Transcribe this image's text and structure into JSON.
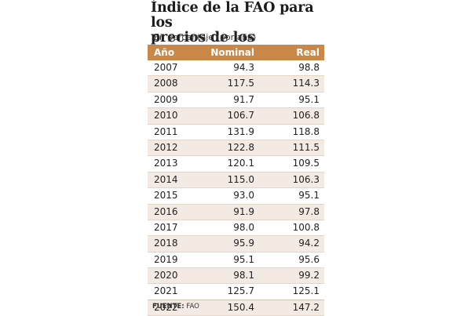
{
  "chart_data": {
    "type": "table",
    "title_lines": [
      "Índice de la FAO para los",
      "precios de los alimentos"
    ],
    "subtitle": "En porcentaje (por año)",
    "columns": [
      "Año",
      "Nominal",
      "Real"
    ],
    "rows": [
      [
        "2007",
        "94.3",
        "98.8"
      ],
      [
        "2008",
        "117.5",
        "114.3"
      ],
      [
        "2009",
        "91.7",
        "95.1"
      ],
      [
        "2010",
        "106.7",
        "106.8"
      ],
      [
        "2011",
        "131.9",
        "118.8"
      ],
      [
        "2012",
        "122.8",
        "111.5"
      ],
      [
        "2013",
        "120.1",
        "109.5"
      ],
      [
        "2014",
        "115.0",
        "106.3"
      ],
      [
        "2015",
        "93.0",
        "95.1"
      ],
      [
        "2016",
        "91.9",
        "97.8"
      ],
      [
        "2017",
        "98.0",
        "100.8"
      ],
      [
        "2018",
        "95.9",
        "94.2"
      ],
      [
        "2019",
        "95.1",
        "95.6"
      ],
      [
        "2020",
        "98.1",
        "99.2"
      ],
      [
        "2021",
        "125.7",
        "125.1"
      ],
      [
        "2022",
        "150.4",
        "147.2"
      ]
    ],
    "source_label": "FUENTE:",
    "source_value": "FAO"
  },
  "colors": {
    "header_bg": "#c98847",
    "stripe_bg": "#f3ebe3"
  }
}
